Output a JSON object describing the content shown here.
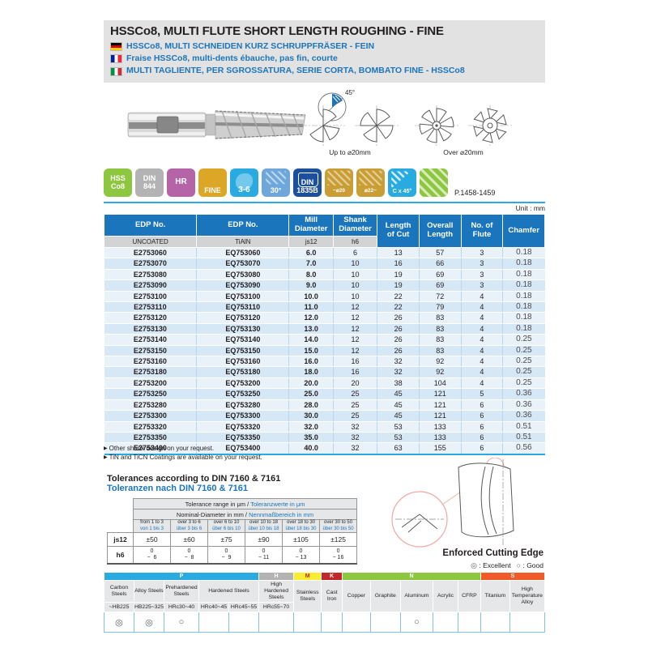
{
  "page": {
    "unit_label": "Unit : mm",
    "page_ref": "P.1458-1459"
  },
  "header": {
    "title_en": "HSSCo8, MULTI FLUTE SHORT LENGTH ROUGHING - FINE",
    "title_de": "HSSCo8, MULTI SCHNEIDEN KURZ SCHRUPPFRÄSER - FEIN",
    "title_fr": "Fraise HSSCo8, multi-dents ébauche, pas fin, courte",
    "title_it": "MULTI TAGLIENTE, PER SGROSSATURA, SERIE CORTA, BOMBATO FINE - HSSCo8"
  },
  "figures": {
    "chamfer_angle": "45°",
    "caption_up_to": "Up to ⌀20mm",
    "caption_over": "Over ⌀20mm"
  },
  "badges": [
    {
      "label": "HSS\nCo8",
      "bg": "#8dc63f",
      "icon": "none"
    },
    {
      "label": "DIN\n844",
      "bg": "#b3b3b3",
      "icon": "none"
    },
    {
      "label": "HR",
      "bg": "#b565a7",
      "icon": "none"
    },
    {
      "label": "FINE",
      "bg": "#dca727",
      "icon": "wave"
    },
    {
      "label": "3-6",
      "bg": "#29abe2",
      "icon": "flute"
    },
    {
      "label": "30°",
      "bg": "#6ea7d9",
      "icon": "helix"
    },
    {
      "label": "DIN\n1835B",
      "bg": "#1c4f9c",
      "icon": "shank"
    },
    {
      "label": "~⌀20",
      "bg": "#c99e35",
      "icon": "hatch"
    },
    {
      "label": "⌀22~",
      "bg": "#c99e35",
      "icon": "hatch"
    },
    {
      "label": "C x 45°",
      "bg": "#29abe2",
      "icon": "chamfer"
    },
    {
      "label": "",
      "bg": "#8dc63f",
      "icon": "stripes"
    }
  ],
  "table": {
    "col1": {
      "title": "EDP No.",
      "sub": "UNCOATED"
    },
    "col2": {
      "title": "EDP No.",
      "sub": "TiAlN"
    },
    "col3": {
      "title": "Mill\nDiameter",
      "sub": "js12"
    },
    "col4": {
      "title": "Shank\nDiameter",
      "sub": "h6"
    },
    "col5": "Length\nof Cut",
    "col6": "Overall\nLength",
    "col7": "No. of\nFlute",
    "col8": "Chamfer",
    "rows": [
      [
        "E2753060",
        "EQ753060",
        "6.0",
        "6",
        "13",
        "57",
        "3",
        "0.18"
      ],
      [
        "E2753070",
        "EQ753070",
        "7.0",
        "10",
        "16",
        "66",
        "3",
        "0.18"
      ],
      [
        "E2753080",
        "EQ753080",
        "8.0",
        "10",
        "19",
        "69",
        "3",
        "0.18"
      ],
      [
        "E2753090",
        "EQ753090",
        "9.0",
        "10",
        "19",
        "69",
        "3",
        "0.18"
      ],
      [
        "E2753100",
        "EQ753100",
        "10.0",
        "10",
        "22",
        "72",
        "4",
        "0.18"
      ],
      [
        "E2753110",
        "EQ753110",
        "11.0",
        "12",
        "22",
        "79",
        "4",
        "0.18"
      ],
      [
        "E2753120",
        "EQ753120",
        "12.0",
        "12",
        "26",
        "83",
        "4",
        "0.18"
      ],
      [
        "E2753130",
        "EQ753130",
        "13.0",
        "12",
        "26",
        "83",
        "4",
        "0.18"
      ],
      [
        "E2753140",
        "EQ753140",
        "14.0",
        "12",
        "26",
        "83",
        "4",
        "0.25"
      ],
      [
        "E2753150",
        "EQ753150",
        "15.0",
        "12",
        "26",
        "83",
        "4",
        "0.25"
      ],
      [
        "E2753160",
        "EQ753160",
        "16.0",
        "16",
        "32",
        "92",
        "4",
        "0.25"
      ],
      [
        "E2753180",
        "EQ753180",
        "18.0",
        "16",
        "32",
        "92",
        "4",
        "0.25"
      ],
      [
        "E2753200",
        "EQ753200",
        "20.0",
        "20",
        "38",
        "104",
        "4",
        "0.25"
      ],
      [
        "E2753250",
        "EQ753250",
        "25.0",
        "25",
        "45",
        "121",
        "5",
        "0.36"
      ],
      [
        "E2753280",
        "EQ753280",
        "28.0",
        "25",
        "45",
        "121",
        "6",
        "0.36"
      ],
      [
        "E2753300",
        "EQ753300",
        "30.0",
        "25",
        "45",
        "121",
        "6",
        "0.36"
      ],
      [
        "E2753320",
        "EQ753320",
        "32.0",
        "32",
        "53",
        "133",
        "6",
        "0.51"
      ],
      [
        "E2753350",
        "EQ753350",
        "35.0",
        "32",
        "53",
        "133",
        "6",
        "0.51"
      ],
      [
        "E2753400",
        "EQ753400",
        "40.0",
        "32",
        "63",
        "155",
        "6",
        "0.56"
      ]
    ]
  },
  "footnotes": [
    {
      "bullet": "▶",
      "text": "Other shank design on your request."
    },
    {
      "bullet": "▶",
      "text": "TiN and TiCN Coatings are available on your request."
    }
  ],
  "tolerances": {
    "title_en": "Tolerances according to DIN 7160 & 7161",
    "title_de": "Toleranzen nach DIN 7160 & 7161",
    "range_header": {
      "en": "Tolerance range in μm",
      "sep": " / ",
      "de": "Toleranzwerte in μm"
    },
    "nominal_header": {
      "en": "Nominal-Diameter in mm",
      "sep": " / ",
      "de": "Nennmaßbereich in mm"
    },
    "ranges": [
      {
        "en": "from 1 to 3",
        "de": "von 1 bis 3"
      },
      {
        "en": "over 3 to 6",
        "de": "über 3 bis 6"
      },
      {
        "en": "over 6 to 10",
        "de": "über 6 bis 10"
      },
      {
        "en": "over 10 to 18",
        "de": "über 10 bis 18"
      },
      {
        "en": "over 18 to 30",
        "de": "über 18 bis 30"
      },
      {
        "en": "over 30 to 50",
        "de": "über 30 bis 50"
      }
    ],
    "js12_label": "js12",
    "js12": [
      "±50",
      "±60",
      "±75",
      "±90",
      "±105",
      "±125"
    ],
    "h6_label": "h6",
    "h6": [
      {
        "upper": "0",
        "lower": "−  6"
      },
      {
        "upper": "0",
        "lower": "−  8"
      },
      {
        "upper": "0",
        "lower": "−  9"
      },
      {
        "upper": "0",
        "lower": "− 11"
      },
      {
        "upper": "0",
        "lower": "− 13"
      },
      {
        "upper": "0",
        "lower": "− 16"
      }
    ]
  },
  "cutting_edge": {
    "label": "Enforced Cutting Edge"
  },
  "legend": {
    "excellent_symbol": "◎",
    "excellent_text": " : Excellent",
    "good_symbol": "○",
    "good_text": " : Good"
  },
  "materials": {
    "bands": [
      {
        "label": "P",
        "color": "#29abe2",
        "text": "#ffffff",
        "span": 5
      },
      {
        "label": "H",
        "color": "#b3b3b3",
        "text": "#ffffff",
        "span": 1
      },
      {
        "label": "M",
        "color": "#f9ed32",
        "text": "#c1272d",
        "span": 1
      },
      {
        "label": "K",
        "color": "#c1272d",
        "text": "#ffffff",
        "span": 1
      },
      {
        "label": "N",
        "color": "#8dc63f",
        "text": "#ffffff",
        "span": 5
      },
      {
        "label": "S",
        "color": "#f15a29",
        "text": "#ffffff",
        "span": 2
      }
    ],
    "name_cells": [
      {
        "label": "Carbon Steels",
        "span": 1,
        "tall": false
      },
      {
        "label": "Alloy Steels",
        "span": 1,
        "tall": false
      },
      {
        "label": "Prehardened Steels",
        "span": 1,
        "tall": false
      },
      {
        "label": "Hardened Steels",
        "span": 2,
        "tall": false
      },
      {
        "label": "High Hardened Steels",
        "span": 1,
        "tall": false
      },
      {
        "label": "Stainless Steels",
        "span": 1,
        "tall": true
      },
      {
        "label": "Cast Iron",
        "span": 1,
        "tall": true
      },
      {
        "label": "Copper",
        "span": 1,
        "tall": true
      },
      {
        "label": "Graphite",
        "span": 1,
        "tall": true
      },
      {
        "label": "Aluminum",
        "span": 1,
        "tall": true
      },
      {
        "label": "Acrylic",
        "span": 1,
        "tall": true
      },
      {
        "label": "CFRP",
        "span": 1,
        "tall": true
      },
      {
        "label": "Titanium",
        "span": 1,
        "tall": true
      },
      {
        "label": "High Temperature Alloy",
        "span": 1,
        "tall": true
      }
    ],
    "sub_cells": [
      "~HB225",
      "HB225~325",
      "HRc30~40",
      "HRc40~45",
      "HRc45~55",
      "HRc55~70"
    ],
    "marks": [
      "◎",
      "◎",
      "○",
      "",
      "",
      "",
      "",
      "",
      "",
      "",
      "○",
      "",
      "",
      "",
      ""
    ]
  }
}
